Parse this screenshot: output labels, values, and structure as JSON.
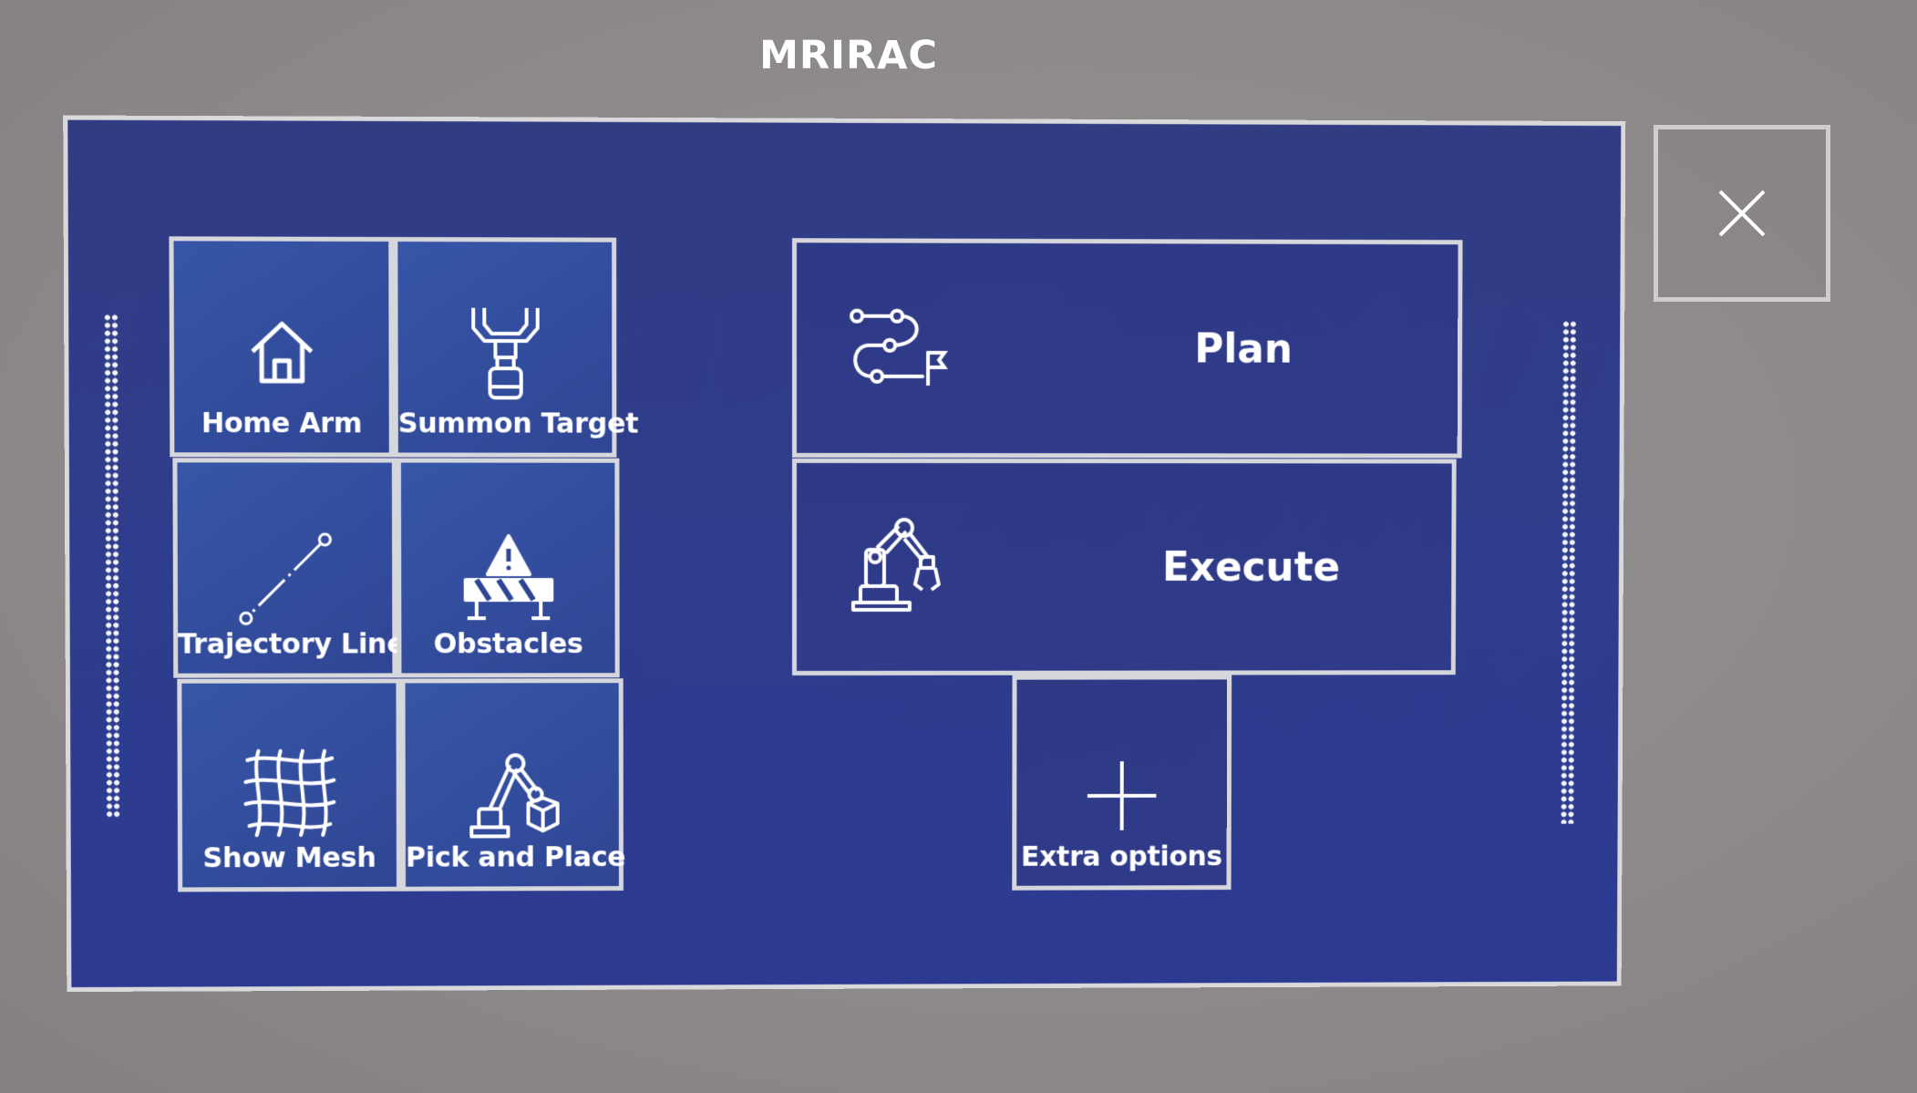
{
  "app": {
    "title": "MRIRAC"
  },
  "menu": {
    "home_arm": {
      "label": "Home Arm",
      "icon": "home-icon"
    },
    "summon_target": {
      "label": "Summon Target",
      "icon": "robot-gripper-icon"
    },
    "trajectory_lines": {
      "label": "Trajectory Lines",
      "icon": "line-icon"
    },
    "obstacles": {
      "label": "Obstacles",
      "icon": "warning-barrier-icon"
    },
    "show_mesh": {
      "label": "Show Mesh",
      "icon": "mesh-icon"
    },
    "pick_and_place": {
      "label": "Pick and Place",
      "icon": "robot-arm-cube-icon"
    }
  },
  "actions": {
    "plan": {
      "label": "Plan",
      "icon": "route-icon"
    },
    "execute": {
      "label": "Execute",
      "icon": "robot-arm-icon"
    },
    "extra_options": {
      "label": "Extra options",
      "icon": "plus-icon"
    }
  },
  "window": {
    "close_icon": "close-icon"
  },
  "colors": {
    "panel_blue": "#2f3b89",
    "tile_blue": "#3756a8",
    "border": "#d6d7dc",
    "background": "#8e8a8b"
  }
}
